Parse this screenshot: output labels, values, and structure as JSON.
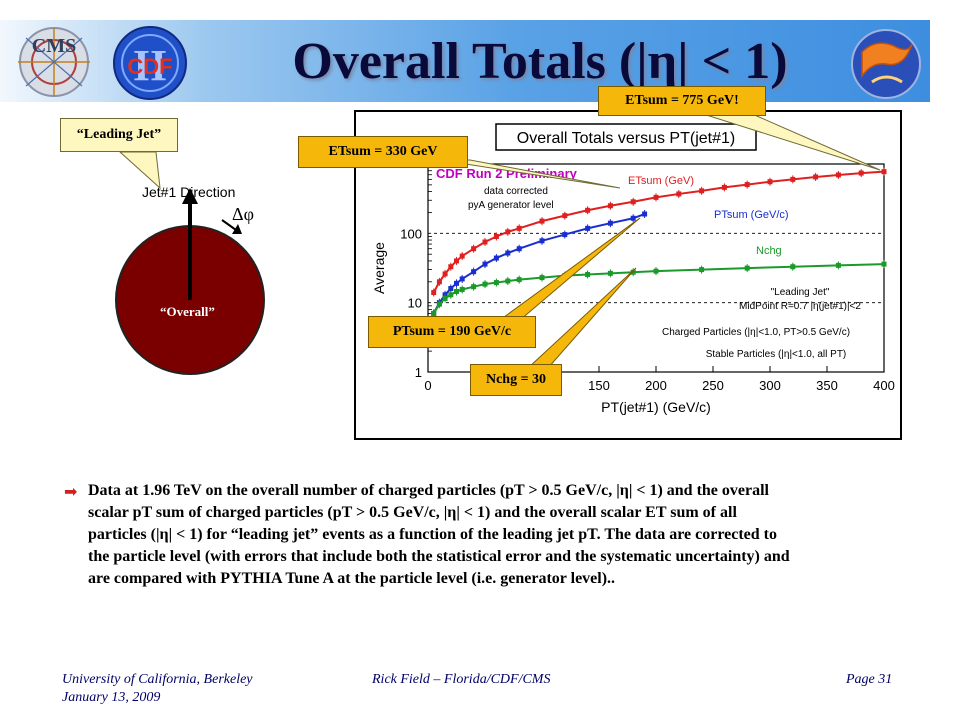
{
  "slide": {
    "title": "Overall Totals (|η| < 1)",
    "logos": {
      "cms": "CMS",
      "cdf": "CDF",
      "cdf_roman": "II"
    },
    "callouts": {
      "leading_jet": "“Leading Jet”",
      "etsum_330": "ETsum = 330 GeV",
      "etsum_775": "ETsum = 775 GeV!",
      "ptsum_190": "PTsum = 190 GeV/c",
      "nchg_30": "Nchg = 30"
    },
    "diagram": {
      "jet_direction": "Jet#1 Direction",
      "delta_phi": "Δφ",
      "overall": "“Overall”"
    },
    "body": {
      "bullet_icon": "arrow-right-icon",
      "line1": "Data at 1.96 TeV on the overall number of charged particles (pT > 0.5 GeV/c, |η| < 1) and the overall",
      "line2": "scalar pT sum of charged particles (pT > 0.5 GeV/c, |η| < 1) and the overall scalar ET sum of all",
      "line3": "particles (|η| < 1) for “leading jet” events as a function of the leading jet pT. The data are corrected to",
      "line4": "the particle level (with errors that include both the statistical error and the systematic uncertainty) and",
      "line5": "are compared with PYTHIA Tune A at the particle level (i.e. generator level).."
    },
    "footer": {
      "left1": "University of California, Berkeley",
      "left2": "January 13, 2009",
      "center": "Rick Field – Florida/CDF/CMS",
      "right": "Page 31"
    }
  },
  "chart_data": {
    "type": "line",
    "title": "Overall Totals versus PT(jet#1)",
    "xlabel": "PT(jet#1)  (GeV/c)",
    "ylabel": "Average",
    "xlim": [
      0,
      400
    ],
    "ylim": [
      1,
      1000
    ],
    "yscale": "log",
    "xticks": [
      0,
      50,
      100,
      150,
      200,
      250,
      300,
      350,
      400
    ],
    "yticks": [
      1,
      10,
      100
    ],
    "grid": "dashed horizontal at 10 and 100",
    "annotations": {
      "preliminary": "CDF Run 2 Preliminary",
      "note1": "data corrected",
      "note2": "pyA generator level",
      "legend_title": "\"Leading Jet\"",
      "legend_line1": "MidPoint R=0.7 |η(jet#1)|<2",
      "legend_line2": "Charged Particles (|η|<1.0, PT>0.5 GeV/c)",
      "legend_line3": "Stable Particles (|η|<1.0, all PT)"
    },
    "series": [
      {
        "name": "ETsum (GeV)",
        "color": "#e02020",
        "x": [
          5,
          10,
          15,
          20,
          25,
          30,
          40,
          50,
          60,
          70,
          80,
          100,
          120,
          140,
          160,
          180,
          200,
          220,
          240,
          260,
          280,
          300,
          320,
          340,
          360,
          380,
          400
        ],
        "y": [
          14,
          20,
          26,
          33,
          40,
          47,
          60,
          75,
          90,
          105,
          118,
          150,
          180,
          215,
          250,
          285,
          330,
          370,
          410,
          460,
          505,
          555,
          600,
          650,
          695,
          740,
          775
        ]
      },
      {
        "name": "PTsum (GeV/c)",
        "color": "#1a2ed0",
        "x": [
          5,
          10,
          15,
          20,
          25,
          30,
          40,
          50,
          60,
          70,
          80,
          100,
          120,
          140,
          160,
          180,
          190
        ],
        "y": [
          7,
          10,
          13,
          16,
          19,
          22,
          28,
          36,
          44,
          52,
          60,
          78,
          96,
          118,
          140,
          165,
          190
        ]
      },
      {
        "name": "Nchg",
        "color": "#1a9a2a",
        "x": [
          5,
          10,
          15,
          20,
          25,
          30,
          40,
          50,
          60,
          70,
          80,
          100,
          120,
          140,
          160,
          180,
          200,
          240,
          280,
          320,
          360,
          400
        ],
        "y": [
          7,
          9.5,
          11.5,
          13,
          14.5,
          15.5,
          17,
          18.5,
          19.5,
          20.5,
          21.5,
          23,
          24.5,
          25.5,
          26.5,
          27.5,
          28.5,
          30,
          31.5,
          33,
          34.5,
          36
        ]
      }
    ]
  }
}
